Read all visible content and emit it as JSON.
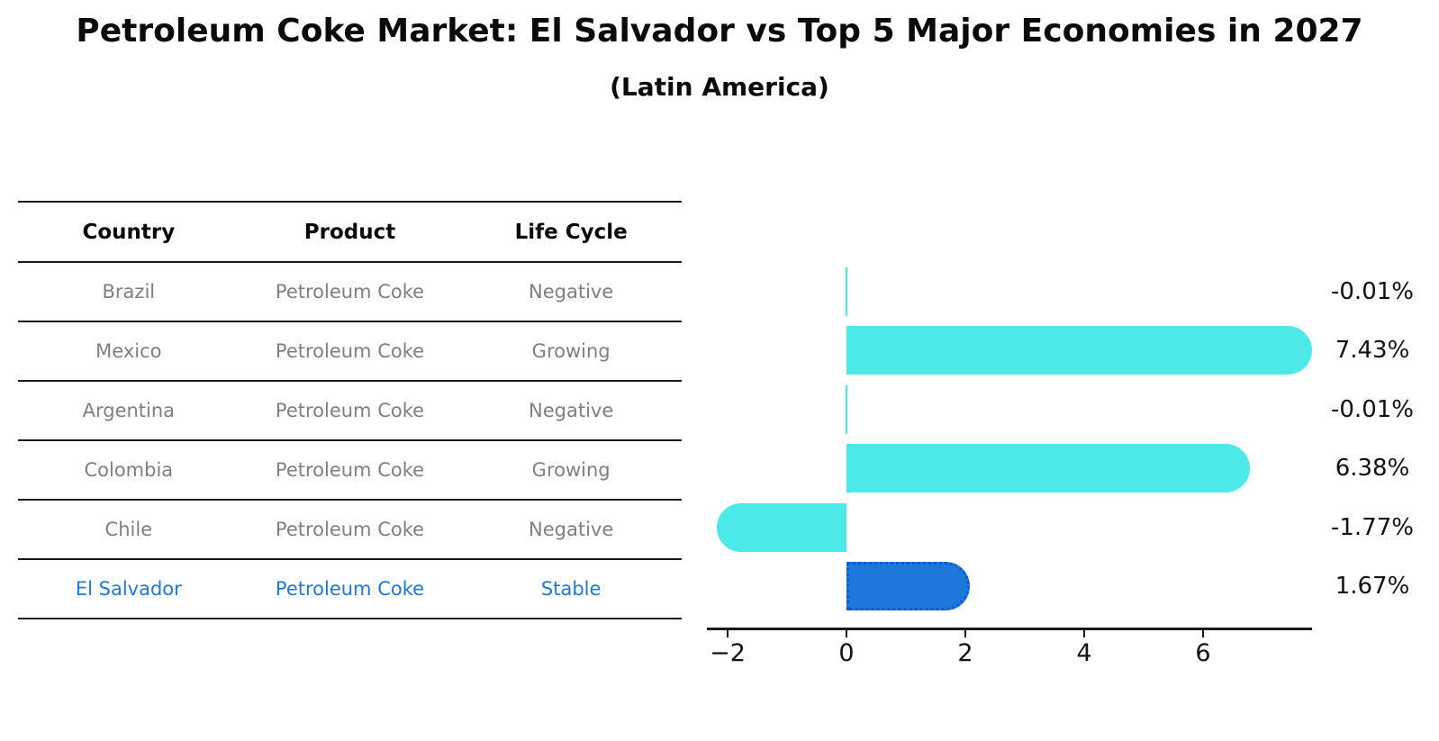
{
  "title": "Petroleum Coke Market: El Salvador vs Top 5 Major Economies in 2027",
  "subtitle": "(Latin America)",
  "table": {
    "headers": [
      "Country",
      "Product",
      "Life Cycle"
    ],
    "rows": [
      {
        "country": "Brazil",
        "product": "Petroleum Coke",
        "life_cycle": "Negative",
        "highlight": false
      },
      {
        "country": "Mexico",
        "product": "Petroleum Coke",
        "life_cycle": "Growing",
        "highlight": false
      },
      {
        "country": "Argentina",
        "product": "Petroleum Coke",
        "life_cycle": "Negative",
        "highlight": false
      },
      {
        "country": "Colombia",
        "product": "Petroleum Coke",
        "life_cycle": "Growing",
        "highlight": false
      },
      {
        "country": "Chile",
        "product": "Petroleum Coke",
        "life_cycle": "Negative",
        "highlight": false
      },
      {
        "country": "El Salvador",
        "product": "Petroleum Coke",
        "life_cycle": "Stable",
        "highlight": true
      }
    ]
  },
  "chart_data": {
    "type": "bar",
    "orientation": "horizontal",
    "categories": [
      "Brazil",
      "Mexico",
      "Argentina",
      "Colombia",
      "Chile",
      "El Salvador"
    ],
    "values": [
      -0.01,
      7.43,
      -0.01,
      6.38,
      -1.77,
      1.67
    ],
    "value_labels": [
      "-0.01%",
      "7.43%",
      "-0.01%",
      "6.38%",
      "-1.77%",
      "1.67%"
    ],
    "x_ticks": [
      -2,
      0,
      2,
      4,
      6
    ],
    "x_tick_labels": [
      "−2",
      "0",
      "2",
      "4",
      "6"
    ],
    "xlim": [
      -2.35,
      7.83
    ],
    "highlight_index": 5,
    "colors": {
      "default": "#4de8e8",
      "highlight": "#1e78dc",
      "highlight_border": "#0c5bd0"
    },
    "legend": "none",
    "grid": false
  }
}
